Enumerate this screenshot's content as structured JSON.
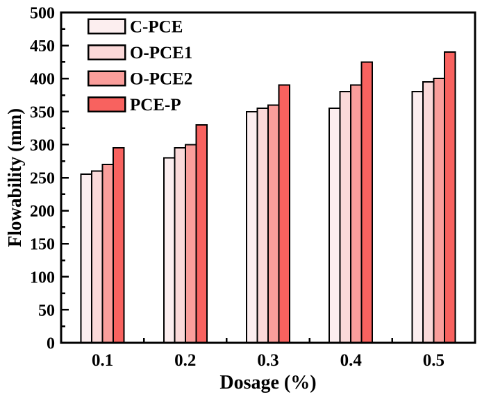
{
  "chart_data": {
    "type": "bar",
    "title": "",
    "xlabel": "Dosage (%)",
    "ylabel": "Flowability (mm)",
    "categories": [
      "0.1",
      "0.2",
      "0.3",
      "0.4",
      "0.5"
    ],
    "series": [
      {
        "name": "C-PCE",
        "color": "#fceeef",
        "values": [
          255,
          280,
          350,
          355,
          380
        ]
      },
      {
        "name": "O-PCE1",
        "color": "#fbd9d9",
        "values": [
          260,
          295,
          355,
          380,
          395
        ]
      },
      {
        "name": "O-PCE2",
        "color": "#fa9e9b",
        "values": [
          270,
          300,
          360,
          390,
          400
        ]
      },
      {
        "name": "PCE-P",
        "color": "#f8625f",
        "values": [
          295,
          330,
          390,
          425,
          440
        ]
      }
    ],
    "ylim": [
      0,
      500
    ],
    "y_major_step": 50,
    "y_minor_step": 25,
    "y_tick_labels": [
      "0",
      "50",
      "100",
      "150",
      "200",
      "250",
      "300",
      "350",
      "400",
      "450",
      "500"
    ],
    "grid": false,
    "legend_position": "top-left",
    "legend_frame": false,
    "bar_edge_color": "#000000",
    "axis_color": "#000000",
    "background_color": "#ffffff"
  }
}
